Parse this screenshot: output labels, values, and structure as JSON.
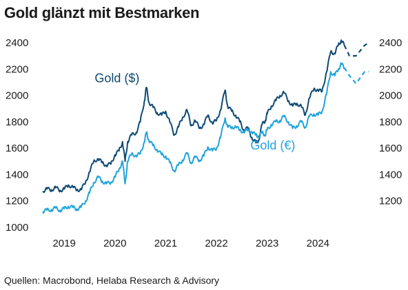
{
  "title": "Gold glänzt mit Bestmarken",
  "source": "Quellen: Macrobond, Helaba Research & Advisory",
  "colors": {
    "usd": "#0d4a73",
    "eur": "#1fa3dc",
    "text": "#1a1a1a"
  },
  "chart_data": {
    "type": "line",
    "title": "Gold glänzt mit Bestmarken",
    "xlabel": "",
    "ylabel": "",
    "x_ticks": [
      "2019",
      "2020",
      "2021",
      "2022",
      "2023",
      "2024"
    ],
    "x_range": [
      2018.55,
      2025.0
    ],
    "ylim": [
      1000,
      2450
    ],
    "y_ticks": [
      1000,
      1200,
      1400,
      1600,
      1800,
      2000,
      2200,
      2400
    ],
    "y_ticks_left": [
      "1000",
      "1200",
      "1400",
      "1600",
      "1800",
      "2000",
      "2200",
      "2400"
    ],
    "y_ticks_right": [
      "1200",
      "1400",
      "1600",
      "1800",
      "2000",
      "2200",
      "2400"
    ],
    "grid": false,
    "series": [
      {
        "name": "Gold ($)",
        "color": "#0d4a73",
        "style": "solid",
        "points": [
          [
            2018.58,
            1275
          ],
          [
            2018.66,
            1290
          ],
          [
            2018.75,
            1285
          ],
          [
            2018.83,
            1300
          ],
          [
            2018.92,
            1280
          ],
          [
            2019.0,
            1290
          ],
          [
            2019.08,
            1320
          ],
          [
            2019.17,
            1305
          ],
          [
            2019.25,
            1285
          ],
          [
            2019.33,
            1285
          ],
          [
            2019.42,
            1340
          ],
          [
            2019.5,
            1420
          ],
          [
            2019.58,
            1500
          ],
          [
            2019.67,
            1520
          ],
          [
            2019.75,
            1490
          ],
          [
            2019.83,
            1470
          ],
          [
            2019.92,
            1480
          ],
          [
            2020.0,
            1550
          ],
          [
            2020.08,
            1580
          ],
          [
            2020.15,
            1650
          ],
          [
            2020.2,
            1500
          ],
          [
            2020.25,
            1650
          ],
          [
            2020.33,
            1700
          ],
          [
            2020.42,
            1720
          ],
          [
            2020.5,
            1800
          ],
          [
            2020.58,
            1960
          ],
          [
            2020.62,
            2060
          ],
          [
            2020.67,
            1950
          ],
          [
            2020.75,
            1910
          ],
          [
            2020.83,
            1870
          ],
          [
            2020.92,
            1850
          ],
          [
            2021.0,
            1880
          ],
          [
            2021.08,
            1800
          ],
          [
            2021.17,
            1700
          ],
          [
            2021.25,
            1760
          ],
          [
            2021.33,
            1830
          ],
          [
            2021.42,
            1890
          ],
          [
            2021.5,
            1770
          ],
          [
            2021.58,
            1810
          ],
          [
            2021.67,
            1750
          ],
          [
            2021.75,
            1780
          ],
          [
            2021.83,
            1850
          ],
          [
            2021.92,
            1790
          ],
          [
            2022.0,
            1810
          ],
          [
            2022.08,
            1890
          ],
          [
            2022.17,
            2040
          ],
          [
            2022.22,
            1920
          ],
          [
            2022.3,
            1880
          ],
          [
            2022.38,
            1850
          ],
          [
            2022.46,
            1800
          ],
          [
            2022.54,
            1740
          ],
          [
            2022.62,
            1750
          ],
          [
            2022.7,
            1680
          ],
          [
            2022.78,
            1640
          ],
          [
            2022.83,
            1660
          ],
          [
            2022.9,
            1780
          ],
          [
            2022.96,
            1810
          ],
          [
            2023.0,
            1860
          ],
          [
            2023.08,
            1920
          ],
          [
            2023.17,
            1960
          ],
          [
            2023.25,
            2000
          ],
          [
            2023.33,
            2020
          ],
          [
            2023.42,
            1960
          ],
          [
            2023.5,
            1920
          ],
          [
            2023.58,
            1940
          ],
          [
            2023.67,
            1920
          ],
          [
            2023.75,
            1850
          ],
          [
            2023.83,
            1980
          ],
          [
            2023.92,
            2050
          ],
          [
            2024.0,
            2040
          ],
          [
            2024.08,
            2030
          ],
          [
            2024.17,
            2180
          ],
          [
            2024.25,
            2330
          ],
          [
            2024.33,
            2320
          ],
          [
            2024.4,
            2380
          ],
          [
            2024.46,
            2420
          ],
          [
            2024.52,
            2380
          ]
        ]
      },
      {
        "name": "Gold (€)",
        "color": "#1fa3dc",
        "style": "solid",
        "points": [
          [
            2018.58,
            1120
          ],
          [
            2018.66,
            1130
          ],
          [
            2018.75,
            1135
          ],
          [
            2018.83,
            1145
          ],
          [
            2018.92,
            1130
          ],
          [
            2019.0,
            1140
          ],
          [
            2019.08,
            1160
          ],
          [
            2019.17,
            1150
          ],
          [
            2019.25,
            1140
          ],
          [
            2019.33,
            1150
          ],
          [
            2019.42,
            1200
          ],
          [
            2019.5,
            1260
          ],
          [
            2019.58,
            1340
          ],
          [
            2019.67,
            1380
          ],
          [
            2019.75,
            1350
          ],
          [
            2019.83,
            1330
          ],
          [
            2019.92,
            1340
          ],
          [
            2020.0,
            1380
          ],
          [
            2020.08,
            1440
          ],
          [
            2020.15,
            1500
          ],
          [
            2020.2,
            1330
          ],
          [
            2020.25,
            1500
          ],
          [
            2020.33,
            1560
          ],
          [
            2020.42,
            1540
          ],
          [
            2020.5,
            1560
          ],
          [
            2020.58,
            1650
          ],
          [
            2020.62,
            1720
          ],
          [
            2020.67,
            1660
          ],
          [
            2020.75,
            1620
          ],
          [
            2020.83,
            1590
          ],
          [
            2020.92,
            1550
          ],
          [
            2021.0,
            1540
          ],
          [
            2021.08,
            1490
          ],
          [
            2021.17,
            1430
          ],
          [
            2021.25,
            1470
          ],
          [
            2021.33,
            1510
          ],
          [
            2021.42,
            1560
          ],
          [
            2021.5,
            1490
          ],
          [
            2021.58,
            1530
          ],
          [
            2021.67,
            1510
          ],
          [
            2021.75,
            1540
          ],
          [
            2021.83,
            1610
          ],
          [
            2021.92,
            1580
          ],
          [
            2022.0,
            1600
          ],
          [
            2022.08,
            1680
          ],
          [
            2022.17,
            1830
          ],
          [
            2022.22,
            1760
          ],
          [
            2022.3,
            1760
          ],
          [
            2022.38,
            1760
          ],
          [
            2022.46,
            1740
          ],
          [
            2022.54,
            1720
          ],
          [
            2022.62,
            1740
          ],
          [
            2022.7,
            1720
          ],
          [
            2022.78,
            1700
          ],
          [
            2022.83,
            1690
          ],
          [
            2022.9,
            1720
          ],
          [
            2022.96,
            1700
          ],
          [
            2023.0,
            1740
          ],
          [
            2023.08,
            1780
          ],
          [
            2023.17,
            1800
          ],
          [
            2023.25,
            1810
          ],
          [
            2023.33,
            1840
          ],
          [
            2023.42,
            1800
          ],
          [
            2023.5,
            1750
          ],
          [
            2023.58,
            1770
          ],
          [
            2023.67,
            1800
          ],
          [
            2023.75,
            1760
          ],
          [
            2023.83,
            1840
          ],
          [
            2023.92,
            1860
          ],
          [
            2024.0,
            1850
          ],
          [
            2024.08,
            1880
          ],
          [
            2024.17,
            2010
          ],
          [
            2024.25,
            2180
          ],
          [
            2024.33,
            2150
          ],
          [
            2024.4,
            2200
          ],
          [
            2024.46,
            2240
          ],
          [
            2024.52,
            2210
          ]
        ]
      },
      {
        "name": "",
        "color": "#0d4a73",
        "style": "dashed",
        "points": [
          [
            2024.52,
            2380
          ],
          [
            2024.62,
            2300
          ],
          [
            2024.75,
            2300
          ],
          [
            2024.92,
            2380
          ],
          [
            2025.0,
            2400
          ]
        ]
      },
      {
        "name": "",
        "color": "#1fa3dc",
        "style": "dashed",
        "points": [
          [
            2024.52,
            2210
          ],
          [
            2024.62,
            2150
          ],
          [
            2024.75,
            2090
          ],
          [
            2024.92,
            2180
          ],
          [
            2025.0,
            2180
          ]
        ]
      }
    ],
    "annotations": [
      {
        "text": "Gold ($)",
        "x": 2019.6,
        "y": 2100,
        "series": 0
      },
      {
        "text": "Gold (€)",
        "x": 2022.67,
        "y": 1590,
        "series": 1
      }
    ]
  }
}
